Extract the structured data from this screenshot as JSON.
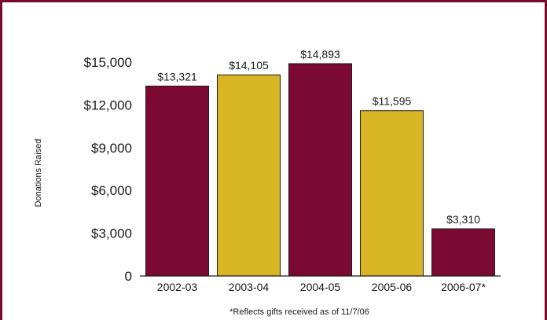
{
  "chart_data": {
    "type": "bar",
    "categories": [
      "2002-03",
      "2003-04",
      "2004-05",
      "2005-06",
      "2006-07*"
    ],
    "values": [
      13321,
      14105,
      14893,
      11595,
      3310
    ],
    "data_labels": [
      "$13,321",
      "$14,105",
      "$14,893",
      "$11,595",
      "$3,310"
    ],
    "ylabel": "Donations Raised",
    "ylim": [
      0,
      15000
    ],
    "yticks": [
      0,
      3000,
      6000,
      9000,
      12000,
      15000
    ],
    "ytick_labels": [
      "0",
      "$3,000",
      "$6,000",
      "$9,000",
      "$12,000",
      "$15,000"
    ],
    "footnote": "*Reflects gifts received as of 11/7/06",
    "grid": false,
    "legend": "none",
    "colors": {
      "bar_maroon": "#7b0a32",
      "bar_gold": "#d8b525",
      "frame": "#7a0a2c",
      "bar_stroke": "#2a1a1a",
      "axis": "#1a1a1a"
    },
    "bar_color_pattern": [
      "bar_maroon",
      "bar_gold",
      "bar_maroon",
      "bar_gold",
      "bar_maroon"
    ]
  }
}
